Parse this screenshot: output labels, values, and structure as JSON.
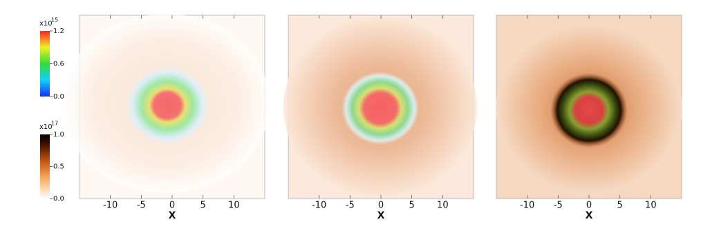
{
  "chart_data": [
    {
      "type": "image",
      "xlabel": "X",
      "xlim": [
        -15,
        15
      ],
      "xticks": [
        -10,
        -5,
        0,
        5,
        10
      ]
    },
    {
      "type": "image",
      "xlabel": "X",
      "xlim": [
        -15,
        15
      ],
      "xticks": [
        -10,
        -5,
        0,
        5,
        10
      ]
    },
    {
      "type": "image",
      "xlabel": "X",
      "xlim": [
        -15,
        15
      ],
      "xticks": [
        -10,
        -5,
        0,
        5,
        10
      ]
    }
  ],
  "colorbars": [
    {
      "multiplier": "x10",
      "exponent": "15",
      "lim": [
        0,
        1.2
      ],
      "ticks": [
        {
          "value": 0,
          "label": "0.0"
        },
        0.6,
        1.2
      ]
    },
    {
      "multiplier": "x10",
      "exponent": "17",
      "lim": [
        0,
        1.0
      ],
      "ticks": [
        {
          "value": 0,
          "label": "0.0"
        },
        0.5,
        {
          "value": 1,
          "label": "1.0"
        }
      ]
    }
  ]
}
